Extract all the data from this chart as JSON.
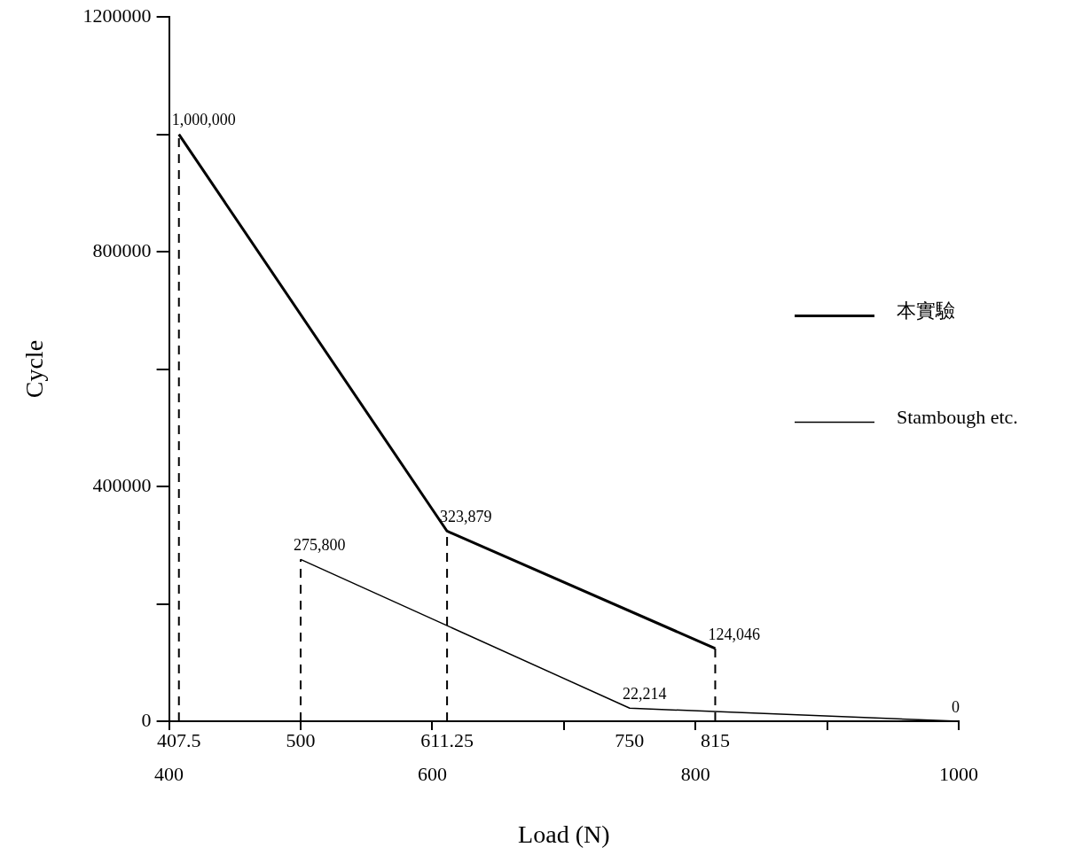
{
  "chart_data": {
    "type": "line",
    "xlabel": "Load (N)",
    "ylabel": "Cycle",
    "xlim": [
      400,
      1000
    ],
    "ylim": [
      0,
      1200000
    ],
    "xticks": [
      400,
      {
        "value": 500,
        "label": null
      },
      600,
      {
        "value": 700,
        "label": null
      },
      800,
      {
        "value": 900,
        "label": null
      },
      1000
    ],
    "yticks": [
      0,
      {
        "value": 200000,
        "label": null
      },
      400000,
      {
        "value": 600000,
        "label": null
      },
      800000,
      {
        "value": 1000000,
        "label": null
      },
      1200000
    ],
    "series": [
      {
        "name": "本實驗",
        "color": "#000000",
        "x": [
          407.5,
          611.25,
          815
        ],
        "values": [
          1000000,
          323879,
          124046
        ],
        "value_labels": [
          "1,000,000",
          "323,879",
          "124,046"
        ]
      },
      {
        "name": "Stambough etc.",
        "color": "#000000",
        "x": [
          500,
          750,
          1000
        ],
        "values": [
          275800,
          22214,
          0
        ],
        "value_labels": [
          "275,800",
          "22,214",
          "0"
        ]
      }
    ],
    "ref_lines": [
      {
        "axis": "x",
        "value": 407.5,
        "label": "407.5",
        "line_style": "dashed"
      },
      {
        "axis": "x",
        "value": 500,
        "label": "500",
        "line_style": "dashed"
      },
      {
        "axis": "x",
        "value": 611.25,
        "label": "611.25",
        "line_style": "dashed"
      },
      {
        "axis": "x",
        "value": 815,
        "label": "815",
        "line_style": "dashed"
      }
    ],
    "annotations": [
      "750"
    ],
    "legend": "right",
    "marker": "none",
    "line_style": "solid",
    "grid": false
  }
}
